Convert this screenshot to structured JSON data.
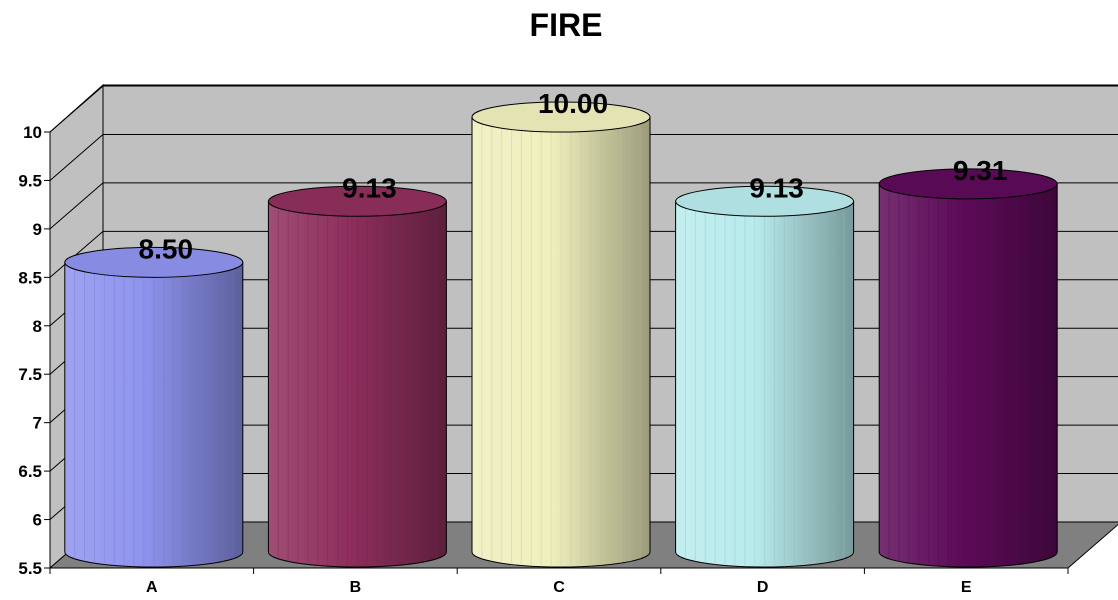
{
  "chart_data": {
    "type": "bar",
    "style": "3d-cylinder",
    "title": "FIRE",
    "xlabel": "",
    "ylabel": "",
    "categories": [
      "A",
      "B",
      "C",
      "D",
      "E"
    ],
    "values": [
      8.5,
      9.13,
      10.0,
      9.13,
      9.31
    ],
    "data_labels": [
      "8.50",
      "9.13",
      "10.00",
      "9.13",
      "9.31"
    ],
    "ylim": [
      5.5,
      10
    ],
    "yticks": [
      "5.5",
      "6",
      "6.5",
      "7",
      "7.5",
      "8",
      "8.5",
      "9",
      "9.5",
      "10"
    ],
    "grid": true,
    "legend": "none",
    "colors": [
      "#8E93EE",
      "#8E2F5D",
      "#EFEFBD",
      "#B8EBEC",
      "#5E0B59"
    ],
    "wall_color": "#C0C0C0",
    "floor_color": "#808080"
  }
}
